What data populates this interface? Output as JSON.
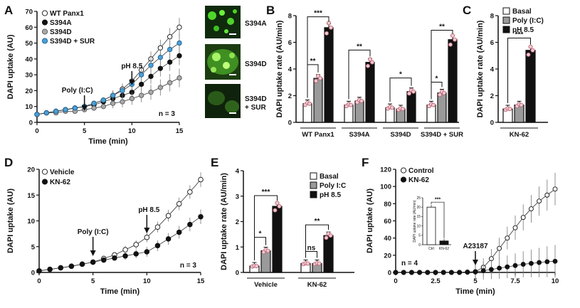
{
  "panels": [
    {
      "label": "A"
    },
    {
      "label": "B"
    },
    {
      "label": "C"
    },
    {
      "label": "D"
    },
    {
      "label": "E"
    },
    {
      "label": "F"
    }
  ],
  "micrographs": [
    {
      "label": "S394A"
    },
    {
      "label": "S394D"
    },
    {
      "label": "S394D\n+ SUR"
    }
  ],
  "chart_data": [
    {
      "panel": "A",
      "type": "line",
      "xlabel": "Time (min)",
      "ylabel": "DAPI uptake (AU)",
      "xlim": [
        0,
        15
      ],
      "ylim": [
        0,
        70
      ],
      "xticks": [
        0,
        5,
        10,
        15
      ],
      "yticks": [
        0,
        10,
        20,
        30,
        40,
        50,
        60,
        70
      ],
      "legend_position": "top-left",
      "annotations": [
        {
          "text": "Poly (I:C)",
          "x": 5
        },
        {
          "text": "pH 8.5",
          "x": 10
        },
        {
          "text": "n = 3"
        }
      ],
      "series": [
        {
          "name": "WT Panx1",
          "fill": "#ffffff",
          "stroke": "#111111",
          "x": [
            0,
            1,
            2,
            3,
            4,
            5,
            6,
            7,
            8,
            9,
            10,
            11,
            12,
            13,
            14,
            15
          ],
          "y": [
            5,
            6,
            7,
            8,
            9,
            10,
            12,
            14,
            17,
            21,
            26,
            33,
            40,
            47,
            54,
            60
          ]
        },
        {
          "name": "S394A",
          "fill": "#111111",
          "stroke": "#111111",
          "x": [
            0,
            1,
            2,
            3,
            4,
            5,
            6,
            7,
            8,
            9,
            10,
            11,
            12,
            13,
            14,
            15
          ],
          "y": [
            5,
            6,
            7,
            8,
            9,
            10,
            11,
            13,
            15,
            17,
            19,
            24,
            29,
            34,
            38,
            42
          ]
        },
        {
          "name": "S394D",
          "fill": "#a9a9a9",
          "stroke": "#555555",
          "x": [
            0,
            1,
            2,
            3,
            4,
            5,
            6,
            7,
            8,
            9,
            10,
            11,
            12,
            13,
            14,
            15
          ],
          "y": [
            5,
            6,
            6,
            7,
            7,
            8,
            9,
            10,
            12,
            13,
            15,
            17,
            19,
            22,
            25,
            28
          ]
        },
        {
          "name": "S394D + SUR",
          "fill": "#4aa0d8",
          "stroke": "#1d5e8a",
          "x": [
            0,
            1,
            2,
            3,
            4,
            5,
            6,
            7,
            8,
            9,
            10,
            11,
            12,
            13,
            14,
            15
          ],
          "y": [
            5,
            6,
            7,
            8,
            9,
            10,
            12,
            14,
            17,
            20,
            24,
            30,
            36,
            41,
            46,
            50
          ]
        }
      ]
    },
    {
      "panel": "B",
      "type": "bar",
      "ylabel": "DAPI uptake rate (AU/min)",
      "ylim": [
        0,
        8
      ],
      "yticks": [
        0,
        2,
        4,
        6,
        8
      ],
      "categories": [
        "WT Panx1",
        "S394A",
        "S394D",
        "S394D + SUR"
      ],
      "series": [
        {
          "name": "Basal",
          "values": [
            1.4,
            1.3,
            1.1,
            1.3
          ]
        },
        {
          "name": "Poly (I:C)",
          "values": [
            3.3,
            1.6,
            1.0,
            2.2
          ]
        },
        {
          "name": "pH 8.5",
          "values": [
            7.1,
            4.5,
            2.3,
            6.2
          ]
        }
      ],
      "significance": [
        "**",
        "***",
        "**",
        "*",
        "*",
        "**"
      ]
    },
    {
      "panel": "C",
      "type": "bar",
      "ylabel": "DAPI uptake rate (AU/min)",
      "ylim": [
        0,
        8
      ],
      "yticks": [
        0,
        2,
        4,
        6,
        8
      ],
      "categories": [
        "KN-62"
      ],
      "legend_position": "top-right",
      "series": [
        {
          "name": "Basal",
          "values": [
            1.0
          ]
        },
        {
          "name": "Poly (I:C)",
          "values": [
            1.3
          ]
        },
        {
          "name": "pH 8.5",
          "values": [
            5.4
          ]
        }
      ],
      "significance": [
        "***"
      ]
    },
    {
      "panel": "D",
      "type": "line",
      "xlabel": "Time (min)",
      "ylabel": "DAPI uptake (AU)",
      "xlim": [
        0,
        15
      ],
      "ylim": [
        0,
        20
      ],
      "xticks": [
        0,
        5,
        10,
        15
      ],
      "yticks": [
        0,
        5,
        10,
        15,
        20
      ],
      "legend_position": "top-left",
      "annotations": [
        {
          "text": "Poly (I:C)",
          "x": 5
        },
        {
          "text": "pH 8.5",
          "x": 10
        },
        {
          "text": "n = 3"
        }
      ],
      "series": [
        {
          "name": "Vehicle",
          "fill": "#ffffff",
          "stroke": "#111111",
          "x": [
            0,
            1,
            2,
            3,
            4,
            5,
            6,
            7,
            8,
            9,
            10,
            11,
            12,
            13,
            14,
            15
          ],
          "y": [
            0.3,
            0.6,
            0.9,
            1.2,
            1.6,
            2.0,
            2.7,
            3.4,
            4.4,
            5.4,
            6.8,
            8.8,
            11.0,
            13.3,
            15.6,
            18.0
          ]
        },
        {
          "name": "KN-62",
          "fill": "#111111",
          "stroke": "#111111",
          "x": [
            0,
            1,
            2,
            3,
            4,
            5,
            6,
            7,
            8,
            9,
            10,
            11,
            12,
            13,
            14,
            15
          ],
          "y": [
            0.3,
            0.6,
            0.9,
            1.2,
            1.6,
            2.0,
            2.4,
            2.8,
            3.2,
            3.6,
            4.0,
            5.2,
            6.5,
            7.8,
            9.3,
            10.8
          ]
        }
      ]
    },
    {
      "panel": "E",
      "type": "bar",
      "ylabel": "DAPI uptake rate (AU/min)",
      "ylim": [
        0,
        4
      ],
      "yticks": [
        0,
        1,
        2,
        3,
        4
      ],
      "categories": [
        "Vehicle",
        "KN-62"
      ],
      "legend_position": "top-right",
      "series": [
        {
          "name": "Basal",
          "values": [
            0.25,
            0.35
          ]
        },
        {
          "name": "Poly I:C",
          "values": [
            0.85,
            0.35
          ]
        },
        {
          "name": "pH 8.5",
          "values": [
            2.6,
            1.45
          ]
        }
      ],
      "significance": [
        "*",
        "***",
        "ns",
        "**"
      ]
    },
    {
      "panel": "F",
      "type": "line",
      "xlabel": "Time (min)",
      "ylabel": "DAPI uptake (AU)",
      "xlim": [
        0,
        10
      ],
      "ylim": [
        0,
        120
      ],
      "xticks": [
        0.0,
        2.5,
        5.0,
        7.5,
        10.0
      ],
      "yticks": [
        0,
        20,
        40,
        60,
        80,
        100,
        120
      ],
      "legend_position": "top-left",
      "annotations": [
        {
          "text": "A23187",
          "x": 5
        },
        {
          "text": "n = 4"
        }
      ],
      "series": [
        {
          "name": "Control",
          "fill": "#ffffff",
          "stroke": "#111111",
          "x": [
            0,
            0.5,
            1,
            1.5,
            2,
            2.5,
            3,
            3.5,
            4,
            4.5,
            5,
            5.5,
            6,
            6.5,
            7,
            7.5,
            8,
            8.5,
            9,
            9.5,
            10
          ],
          "y": [
            0,
            0,
            0,
            0,
            0,
            0,
            0,
            0,
            0,
            0.5,
            1,
            6,
            16,
            28,
            40,
            52,
            64,
            74,
            83,
            90,
            97
          ]
        },
        {
          "name": "KN-62",
          "fill": "#111111",
          "stroke": "#111111",
          "x": [
            0,
            0.5,
            1,
            1.5,
            2,
            2.5,
            3,
            3.5,
            4,
            4.5,
            5,
            5.5,
            6,
            6.5,
            7,
            7.5,
            8,
            8.5,
            9,
            9.5,
            10
          ],
          "y": [
            0,
            0,
            0,
            0,
            0,
            0,
            0,
            0,
            0,
            0.3,
            0.6,
            2,
            3.5,
            5,
            6.5,
            8,
            9.5,
            10.5,
            11.5,
            12.5,
            13
          ]
        }
      ],
      "inset": {
        "type": "bar",
        "ylabel": "DAPI uptake rate (AU/min)",
        "categories": [
          "Ctrl",
          "KN-62"
        ],
        "values": [
          20,
          2
        ],
        "ylim": [
          0,
          25
        ],
        "yticks": [
          0,
          5,
          10,
          15,
          20,
          25
        ],
        "significance": "***"
      }
    }
  ]
}
